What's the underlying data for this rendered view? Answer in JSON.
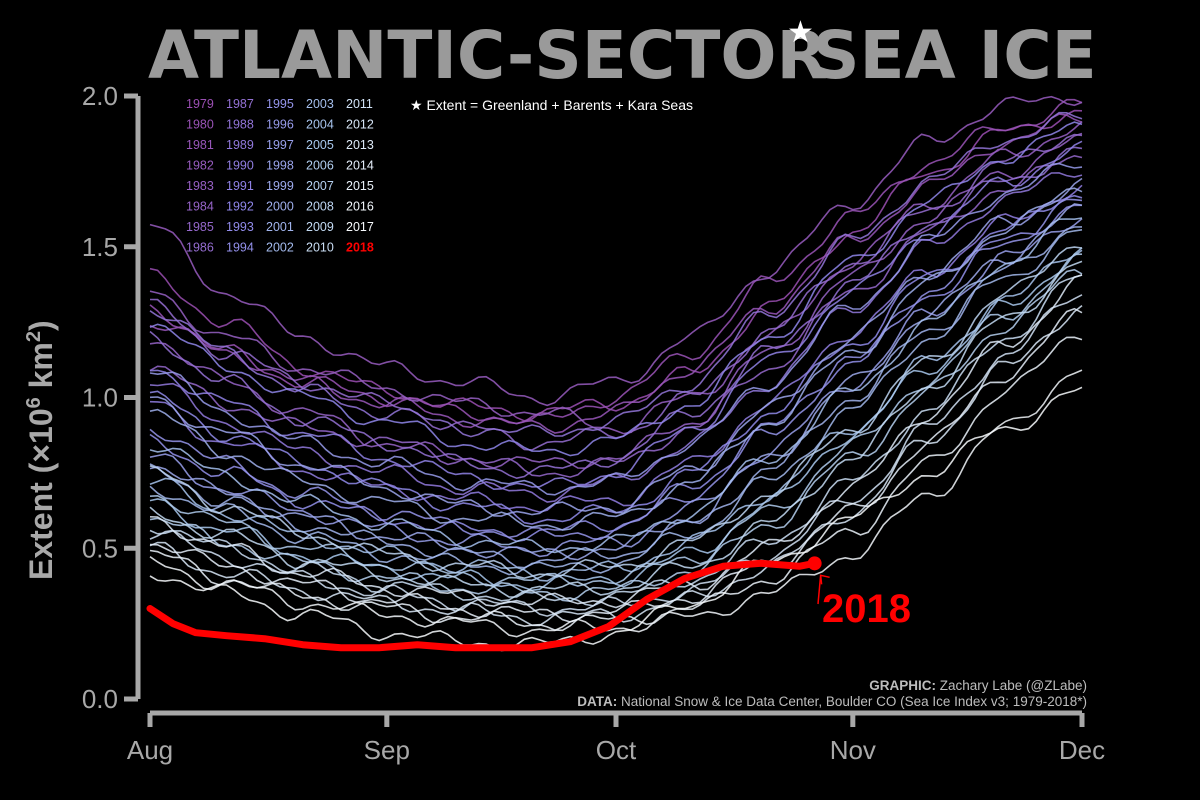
{
  "title": "ATLANTIC-SECTOR",
  "title_star": "★",
  "title_tail": "SEA ICE",
  "note": "★ Extent = Greenland + Barents + Kara Seas",
  "credits": {
    "graphic_label": "GRAPHIC:",
    "graphic_text": "Zachary Labe (@ZLabe)",
    "data_label": "DATA:",
    "data_text": "National Snow & Ice Data Center, Boulder CO (Sea Ice Index v3; 1979-2018*)"
  },
  "colors": {
    "background": "#000000",
    "axis": "#a8a8a8",
    "highlight": "#ff0000",
    "early_years": "#9b4fb3",
    "mid_years": "#8f86ea",
    "late_years": "#a9c9ee",
    "recent_years": "#ffffff"
  },
  "chart_data": {
    "type": "line",
    "ylabel_main": "Extent (",
    "ylabel_times": "×10",
    "ylabel_exp": "6",
    "ylabel_unit": " km",
    "ylabel_sq": "2",
    "ylabel_close": ")",
    "ylim": [
      0.0,
      2.0
    ],
    "yticks": [
      "0.0",
      "0.5",
      "1.0",
      "1.5",
      "2.0"
    ],
    "xticks": [
      "Aug",
      "Sep",
      "Oct",
      "Nov",
      "Dec"
    ],
    "xlim_days": [
      0,
      122
    ],
    "grid": false,
    "legend_position": "top-left",
    "legend_years": [
      "1979",
      "1980",
      "1981",
      "1982",
      "1983",
      "1984",
      "1985",
      "1986",
      "1987",
      "1988",
      "1989",
      "1990",
      "1991",
      "1992",
      "1993",
      "1994",
      "1995",
      "1996",
      "1997",
      "1998",
      "1999",
      "2000",
      "2001",
      "2002",
      "2003",
      "2004",
      "2005",
      "2006",
      "2007",
      "2008",
      "2009",
      "2010",
      "2011",
      "2012",
      "2013",
      "2014",
      "2015",
      "2016",
      "2017",
      "2018"
    ],
    "highlight_label": "2018",
    "background_series_keyframes_days": [
      0,
      10,
      20,
      31,
      41,
      51,
      61,
      71,
      81,
      92,
      102,
      112,
      122
    ],
    "background_series": [
      {
        "year": "1979",
        "values": [
          1.4,
          1.25,
          1.1,
          1.02,
          0.97,
          0.95,
          0.98,
          1.08,
          1.3,
          1.55,
          1.75,
          1.88,
          1.95
        ]
      },
      {
        "year": "1980",
        "values": [
          1.3,
          1.15,
          1.05,
          1.0,
          0.95,
          0.92,
          1.0,
          1.15,
          1.38,
          1.6,
          1.78,
          1.9,
          1.97
        ]
      },
      {
        "year": "1981",
        "values": [
          1.25,
          1.15,
          1.05,
          0.98,
          0.93,
          0.9,
          0.95,
          1.1,
          1.3,
          1.52,
          1.7,
          1.85,
          1.93
        ]
      },
      {
        "year": "1982",
        "values": [
          1.57,
          1.35,
          1.2,
          1.1,
          1.05,
          1.0,
          1.05,
          1.2,
          1.42,
          1.65,
          1.85,
          1.97,
          2.0
        ]
      },
      {
        "year": "1983",
        "values": [
          1.35,
          1.2,
          1.1,
          1.03,
          0.98,
          0.95,
          0.9,
          1.0,
          1.2,
          1.45,
          1.65,
          1.8,
          1.9
        ]
      },
      {
        "year": "1984",
        "values": [
          1.2,
          1.05,
          0.95,
          0.85,
          0.8,
          0.78,
          0.8,
          0.92,
          1.15,
          1.4,
          1.6,
          1.75,
          1.85
        ]
      },
      {
        "year": "1985",
        "values": [
          1.1,
          0.98,
          0.9,
          0.85,
          0.8,
          0.75,
          0.78,
          0.9,
          1.1,
          1.35,
          1.55,
          1.7,
          1.8
        ]
      },
      {
        "year": "1986",
        "values": [
          1.3,
          1.15,
          1.05,
          0.98,
          0.9,
          0.85,
          0.88,
          1.0,
          1.22,
          1.45,
          1.62,
          1.78,
          1.88
        ]
      },
      {
        "year": "1987",
        "values": [
          1.2,
          1.05,
          0.93,
          0.85,
          0.78,
          0.75,
          0.8,
          0.95,
          1.15,
          1.38,
          1.58,
          1.72,
          1.82
        ]
      },
      {
        "year": "1988",
        "values": [
          1.3,
          1.15,
          1.02,
          0.95,
          0.9,
          0.88,
          0.92,
          1.05,
          1.28,
          1.52,
          1.72,
          1.86,
          1.93
        ]
      },
      {
        "year": "1989",
        "values": [
          1.05,
          0.92,
          0.82,
          0.75,
          0.7,
          0.68,
          0.72,
          0.85,
          1.05,
          1.3,
          1.5,
          1.66,
          1.76
        ]
      },
      {
        "year": "1990",
        "values": [
          0.98,
          0.85,
          0.76,
          0.7,
          0.66,
          0.64,
          0.66,
          0.78,
          0.98,
          1.22,
          1.42,
          1.58,
          1.7
        ]
      },
      {
        "year": "1991",
        "values": [
          1.1,
          0.98,
          0.88,
          0.8,
          0.74,
          0.7,
          0.75,
          0.9,
          1.12,
          1.35,
          1.55,
          1.72,
          1.82
        ]
      },
      {
        "year": "1992",
        "values": [
          1.25,
          1.1,
          1.0,
          0.92,
          0.85,
          0.82,
          0.86,
          0.98,
          1.2,
          1.45,
          1.65,
          1.8,
          1.9
        ]
      },
      {
        "year": "1993",
        "values": [
          1.0,
          0.88,
          0.78,
          0.7,
          0.64,
          0.6,
          0.62,
          0.75,
          0.95,
          1.18,
          1.4,
          1.56,
          1.68
        ]
      },
      {
        "year": "1994",
        "values": [
          0.85,
          0.75,
          0.66,
          0.6,
          0.56,
          0.55,
          0.58,
          0.7,
          0.9,
          1.12,
          1.34,
          1.52,
          1.64
        ]
      },
      {
        "year": "1995",
        "values": [
          0.9,
          0.78,
          0.68,
          0.62,
          0.57,
          0.54,
          0.56,
          0.68,
          0.88,
          1.12,
          1.35,
          1.52,
          1.65
        ]
      },
      {
        "year": "1996",
        "values": [
          1.1,
          0.95,
          0.85,
          0.78,
          0.72,
          0.7,
          0.72,
          0.85,
          1.05,
          1.3,
          1.52,
          1.68,
          1.78
        ]
      },
      {
        "year": "1997",
        "values": [
          0.8,
          0.7,
          0.62,
          0.56,
          0.52,
          0.5,
          0.52,
          0.63,
          0.82,
          1.05,
          1.28,
          1.46,
          1.6
        ]
      },
      {
        "year": "1998",
        "values": [
          1.0,
          0.88,
          0.78,
          0.7,
          0.64,
          0.62,
          0.64,
          0.76,
          0.96,
          1.2,
          1.42,
          1.58,
          1.7
        ]
      },
      {
        "year": "1999",
        "values": [
          0.78,
          0.68,
          0.6,
          0.54,
          0.5,
          0.48,
          0.5,
          0.6,
          0.8,
          1.05,
          1.28,
          1.47,
          1.62
        ]
      },
      {
        "year": "2000",
        "values": [
          0.95,
          0.82,
          0.72,
          0.65,
          0.6,
          0.58,
          0.6,
          0.72,
          0.92,
          1.15,
          1.38,
          1.56,
          1.7
        ]
      },
      {
        "year": "2001",
        "values": [
          0.75,
          0.66,
          0.58,
          0.52,
          0.48,
          0.46,
          0.48,
          0.58,
          0.76,
          1.0,
          1.22,
          1.42,
          1.58
        ]
      },
      {
        "year": "2002",
        "values": [
          0.7,
          0.62,
          0.54,
          0.48,
          0.45,
          0.43,
          0.45,
          0.55,
          0.72,
          0.96,
          1.2,
          1.4,
          1.55
        ]
      },
      {
        "year": "2003",
        "values": [
          0.85,
          0.74,
          0.65,
          0.58,
          0.53,
          0.5,
          0.52,
          0.62,
          0.8,
          1.02,
          1.25,
          1.45,
          1.6
        ]
      },
      {
        "year": "2004",
        "values": [
          0.72,
          0.62,
          0.54,
          0.48,
          0.44,
          0.42,
          0.43,
          0.52,
          0.68,
          0.9,
          1.12,
          1.32,
          1.5
        ]
      },
      {
        "year": "2005",
        "values": [
          0.65,
          0.56,
          0.48,
          0.43,
          0.4,
          0.38,
          0.4,
          0.48,
          0.65,
          0.88,
          1.1,
          1.3,
          1.48
        ]
      },
      {
        "year": "2006",
        "values": [
          0.68,
          0.58,
          0.5,
          0.45,
          0.41,
          0.39,
          0.4,
          0.47,
          0.62,
          0.84,
          1.06,
          1.28,
          1.45
        ]
      },
      {
        "year": "2007",
        "values": [
          0.6,
          0.52,
          0.45,
          0.4,
          0.37,
          0.35,
          0.36,
          0.43,
          0.58,
          0.8,
          1.02,
          1.24,
          1.42
        ]
      },
      {
        "year": "2008",
        "values": [
          0.75,
          0.64,
          0.55,
          0.48,
          0.44,
          0.42,
          0.44,
          0.52,
          0.68,
          0.9,
          1.12,
          1.34,
          1.52
        ]
      },
      {
        "year": "2009",
        "values": [
          0.62,
          0.54,
          0.46,
          0.41,
          0.38,
          0.36,
          0.37,
          0.44,
          0.58,
          0.8,
          1.04,
          1.26,
          1.45
        ]
      },
      {
        "year": "2010",
        "values": [
          0.58,
          0.5,
          0.43,
          0.38,
          0.35,
          0.33,
          0.34,
          0.4,
          0.52,
          0.72,
          0.96,
          1.2,
          1.4
        ]
      },
      {
        "year": "2011",
        "values": [
          0.55,
          0.47,
          0.4,
          0.35,
          0.32,
          0.3,
          0.31,
          0.36,
          0.48,
          0.66,
          0.9,
          1.14,
          1.35
        ]
      },
      {
        "year": "2012",
        "values": [
          0.5,
          0.42,
          0.36,
          0.32,
          0.29,
          0.27,
          0.28,
          0.33,
          0.44,
          0.62,
          0.86,
          1.1,
          1.3
        ]
      },
      {
        "year": "2013",
        "values": [
          0.6,
          0.5,
          0.42,
          0.37,
          0.34,
          0.32,
          0.33,
          0.38,
          0.5,
          0.7,
          0.95,
          1.18,
          1.38
        ]
      },
      {
        "year": "2014",
        "values": [
          0.52,
          0.44,
          0.38,
          0.33,
          0.3,
          0.28,
          0.29,
          0.34,
          0.45,
          0.62,
          0.85,
          1.08,
          1.28
        ]
      },
      {
        "year": "2015",
        "values": [
          0.48,
          0.4,
          0.34,
          0.3,
          0.27,
          0.25,
          0.26,
          0.3,
          0.4,
          0.56,
          0.78,
          1.02,
          1.22
        ]
      },
      {
        "year": "2016",
        "values": [
          0.45,
          0.38,
          0.32,
          0.28,
          0.25,
          0.23,
          0.24,
          0.27,
          0.35,
          0.48,
          0.68,
          0.9,
          1.1
        ]
      },
      {
        "year": "2017",
        "values": [
          0.42,
          0.35,
          0.28,
          0.22,
          0.19,
          0.18,
          0.22,
          0.32,
          0.45,
          0.6,
          0.75,
          0.9,
          1.02
        ]
      }
    ],
    "highlight_series": {
      "year": "2018",
      "days": [
        0,
        3,
        6,
        10,
        15,
        20,
        25,
        30,
        35,
        40,
        45,
        50,
        55,
        60,
        65,
        70,
        75,
        80,
        85,
        87
      ],
      "values": [
        0.3,
        0.25,
        0.22,
        0.21,
        0.2,
        0.18,
        0.17,
        0.17,
        0.18,
        0.17,
        0.17,
        0.17,
        0.19,
        0.24,
        0.33,
        0.4,
        0.44,
        0.45,
        0.44,
        0.45
      ]
    }
  }
}
